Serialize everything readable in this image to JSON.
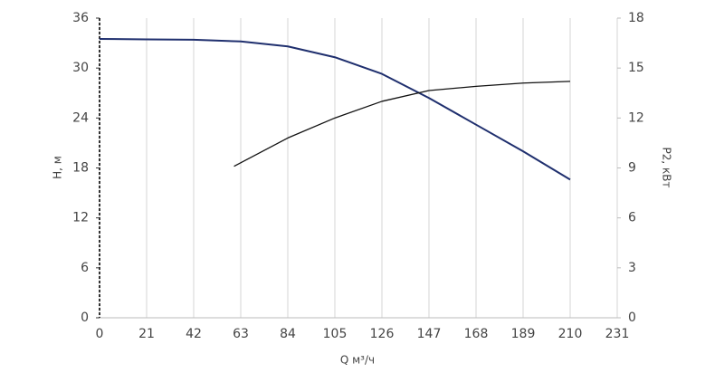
{
  "chart_data": {
    "type": "line",
    "xlabel": "Q м³/ч",
    "ylabel": "H, м",
    "y2label": "P2, кВт",
    "xlim": [
      0,
      231
    ],
    "xticks": [
      0,
      21,
      42,
      63,
      84,
      105,
      126,
      147,
      168,
      189,
      210,
      231
    ],
    "ylim": [
      0,
      36
    ],
    "yticks": [
      0,
      6,
      12,
      18,
      24,
      30,
      36
    ],
    "y2lim": [
      0,
      18
    ],
    "y2ticks": [
      0,
      3,
      6,
      9,
      12,
      15,
      18
    ],
    "grid": true,
    "series": [
      {
        "color": "#1f2f6e",
        "x": [
          0,
          21,
          42,
          63,
          84,
          105,
          126,
          147,
          168,
          189,
          210
        ],
        "values": [
          33.5,
          33.45,
          33.4,
          33.2,
          32.6,
          31.3,
          29.3,
          26.4,
          23.2,
          20.0,
          16.6
        ]
      },
      {
        "color": "#111111",
        "axis": "y2",
        "x": [
          60,
          84,
          105,
          126,
          147,
          168,
          189,
          210
        ],
        "values": [
          9.1,
          10.8,
          12.0,
          13.0,
          13.65,
          13.9,
          14.1,
          14.2
        ]
      }
    ]
  }
}
